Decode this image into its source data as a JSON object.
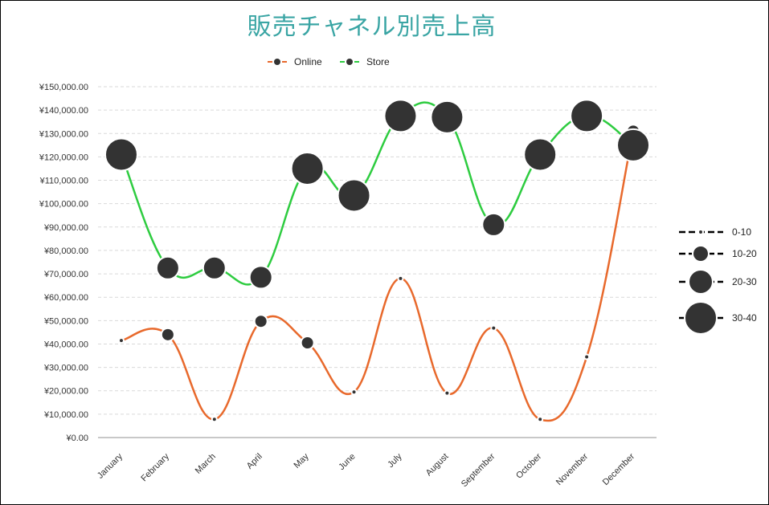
{
  "title": "販売チャネル別売上高",
  "chart_data": {
    "type": "line",
    "categories": [
      "January",
      "February",
      "March",
      "April",
      "May",
      "June",
      "July",
      "August",
      "September",
      "October",
      "November",
      "December"
    ],
    "series": [
      {
        "name": "Online",
        "color": "#e8692c",
        "values": [
          41500,
          44000,
          7800,
          49700,
          40500,
          19500,
          68000,
          19000,
          46800,
          7800,
          34500,
          131000
        ],
        "sizes": [
          6,
          12,
          6,
          12,
          12,
          6,
          6,
          6,
          6,
          6,
          6,
          12
        ]
      },
      {
        "name": "Store",
        "color": "#2ecc40",
        "values": [
          121000,
          72500,
          72500,
          68500,
          115000,
          103500,
          137500,
          137000,
          91000,
          121000,
          137500,
          125000
        ],
        "sizes": [
          36,
          24,
          24,
          24,
          36,
          36,
          36,
          36,
          24,
          36,
          36,
          36
        ]
      }
    ],
    "ylim": [
      0,
      150000
    ],
    "yticks": [
      "¥0.00",
      "¥10,000.00",
      "¥20,000.00",
      "¥30,000.00",
      "¥40,000.00",
      "¥50,000.00",
      "¥60,000.00",
      "¥70,000.00",
      "¥80,000.00",
      "¥90,000.00",
      "¥100,000.00",
      "¥110,000.00",
      "¥120,000.00",
      "¥130,000.00",
      "¥140,000.00",
      "¥150,000.00"
    ],
    "grid": true,
    "legend_position": "top-center",
    "size_legend": {
      "position": "right",
      "items": [
        {
          "label": "0-10",
          "size": 6
        },
        {
          "label": "10-20",
          "size": 16
        },
        {
          "label": "20-30",
          "size": 26
        },
        {
          "label": "30-40",
          "size": 36
        }
      ]
    }
  }
}
